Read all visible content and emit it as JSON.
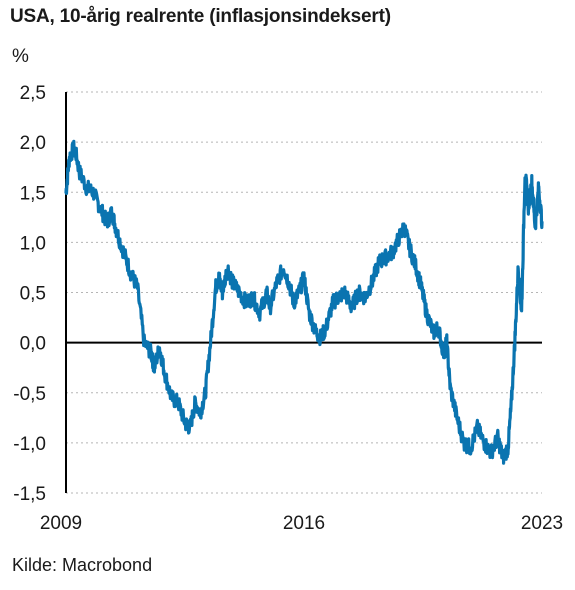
{
  "title": "USA, 10-årig realrente (inflasjonsindeksert)",
  "source": "Kilde: Macrobond",
  "colors": {
    "series": "#0a74b0",
    "zero_line": "#000000",
    "grid": "#b5b5b5",
    "axis": "#000000"
  },
  "chart_data": {
    "type": "line",
    "title": "USA, 10-årig realrente (inflasjonsindeksert)",
    "ylabel": "%",
    "xlabel": "",
    "ylim": [
      -1.5,
      2.5
    ],
    "xlim": [
      2009.0,
      2023.0
    ],
    "yticks": [
      "2,5",
      "2,0",
      "1,5",
      "1,0",
      "0,5",
      "0,0",
      "-0,5",
      "-1,0",
      "-1,5"
    ],
    "ytick_values": [
      2.5,
      2.0,
      1.5,
      1.0,
      0.5,
      0.0,
      -0.5,
      -1.0,
      -1.5
    ],
    "xticks": [
      "2009",
      "2016",
      "2023"
    ],
    "xtick_values": [
      2009.0,
      2016.0,
      2023.0
    ],
    "grid": "horizontal dotted",
    "zero_line": true,
    "series": [
      {
        "x": [
          2009.0,
          2009.1,
          2009.25,
          2009.4,
          2009.6,
          2009.8,
          2010.0,
          2010.2,
          2010.35,
          2010.5,
          2010.7,
          2010.9,
          2011.1,
          2011.3,
          2011.5,
          2011.6,
          2011.75,
          2011.9,
          2012.1,
          2012.3,
          2012.5,
          2012.65,
          2012.8,
          2012.95,
          2013.1,
          2013.25,
          2013.4,
          2013.5,
          2013.6,
          2013.75,
          2013.9,
          2014.1,
          2014.3,
          2014.5,
          2014.7,
          2014.9,
          2015.0,
          2015.2,
          2015.4,
          2015.55,
          2015.7,
          2015.85,
          2016.0,
          2016.15,
          2016.35,
          2016.5,
          2016.65,
          2016.85,
          2017.0,
          2017.2,
          2017.4,
          2017.6,
          2017.8,
          2018.0,
          2018.2,
          2018.4,
          2018.6,
          2018.8,
          2018.95,
          2019.1,
          2019.3,
          2019.45,
          2019.6,
          2019.8,
          2019.95,
          2020.1,
          2020.2,
          2020.3,
          2020.5,
          2020.7,
          2020.9,
          2021.1,
          2021.3,
          2021.5,
          2021.7,
          2021.85,
          2022.0,
          2022.1,
          2022.2,
          2022.3,
          2022.4,
          2022.5,
          2022.6,
          2022.7,
          2022.8,
          2022.9,
          2023.0
        ],
        "values": [
          1.5,
          1.85,
          1.95,
          1.7,
          1.55,
          1.5,
          1.35,
          1.2,
          1.3,
          1.1,
          0.9,
          0.7,
          0.55,
          0.0,
          -0.1,
          -0.25,
          -0.05,
          -0.3,
          -0.55,
          -0.6,
          -0.8,
          -0.85,
          -0.6,
          -0.7,
          -0.5,
          0.0,
          0.55,
          0.65,
          0.5,
          0.75,
          0.6,
          0.5,
          0.4,
          0.45,
          0.3,
          0.5,
          0.35,
          0.6,
          0.75,
          0.6,
          0.4,
          0.5,
          0.65,
          0.3,
          0.1,
          0.05,
          0.15,
          0.4,
          0.45,
          0.5,
          0.35,
          0.5,
          0.45,
          0.6,
          0.8,
          0.85,
          0.9,
          1.05,
          1.15,
          0.95,
          0.75,
          0.55,
          0.3,
          0.1,
          0.15,
          -0.1,
          0.0,
          -0.45,
          -0.75,
          -1.0,
          -1.05,
          -0.85,
          -1.0,
          -1.1,
          -0.95,
          -1.15,
          -1.05,
          -0.6,
          0.0,
          0.75,
          0.3,
          1.7,
          1.35,
          1.6,
          1.15,
          1.55,
          1.2
        ]
      }
    ]
  }
}
